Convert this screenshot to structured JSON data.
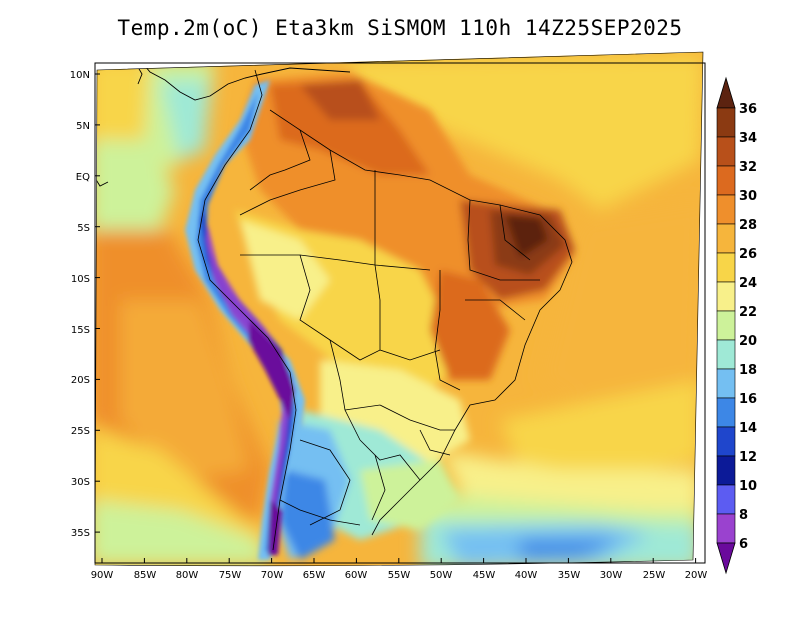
{
  "title": "Temp.2m(oC) Eta3km SiSMOM 110h 14Z25SEP2025",
  "variable": "2m temperature",
  "units": "oC",
  "map": {
    "lat_ticks": [
      "10N",
      "5N",
      "EQ",
      "5S",
      "10S",
      "15S",
      "20S",
      "25S",
      "30S",
      "35S"
    ],
    "lon_ticks": [
      "90W",
      "85W",
      "80W",
      "75W",
      "70W",
      "65W",
      "60W",
      "55W",
      "50W",
      "45W",
      "40W",
      "35W",
      "30W",
      "25W",
      "20W"
    ]
  },
  "colorbar": {
    "labels": [
      "36",
      "34",
      "32",
      "30",
      "28",
      "26",
      "24",
      "22",
      "20",
      "18",
      "16",
      "14",
      "12",
      "10",
      "8",
      "6"
    ],
    "colors": [
      "#5c2310",
      "#8b3a12",
      "#b8501a",
      "#dc6a1f",
      "#ef8f2c",
      "#f6b53c",
      "#f8d548",
      "#f8f08a",
      "#cdf29a",
      "#9fe9d6",
      "#74bff2",
      "#3d87e6",
      "#1f46cc",
      "#0c1a98",
      "#5c5cf2",
      "#9a42cf",
      "#6a0a9c"
    ]
  }
}
